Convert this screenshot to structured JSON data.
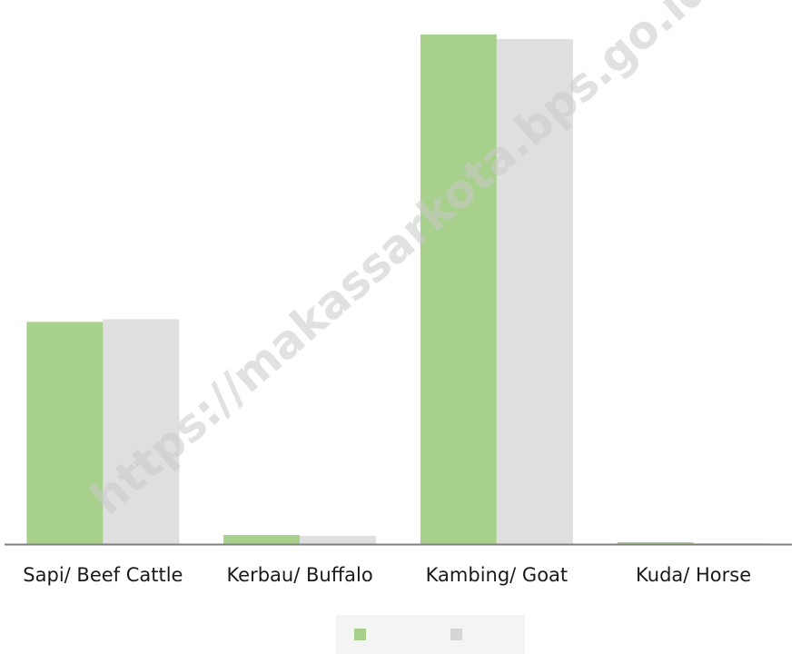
{
  "watermark": "https://makassarkota.bps.go.id",
  "colors": {
    "series1": "#a8d08d",
    "series2": "#dfdfe0",
    "axis": "#7f7f7f",
    "legend_bg": "#f4f4f4"
  },
  "chart_data": {
    "type": "bar",
    "categories": [
      "Sapi/ Beef Cattle",
      "Kerbau/ Buffalo",
      "Kambing/ Goat",
      "Kuda/ Horse"
    ],
    "series": [
      {
        "values": [
          245,
          10,
          562,
          2
        ]
      },
      {
        "values": [
          248,
          9,
          557,
          1
        ]
      }
    ],
    "ylim": [
      0,
      600
    ],
    "grid": false,
    "legend_position": "bottom"
  }
}
